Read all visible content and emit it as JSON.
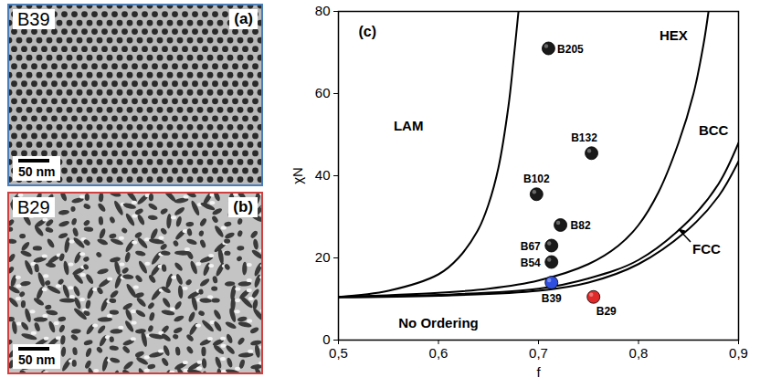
{
  "chart_data": {
    "type": "scatter",
    "panel_label": "(c)",
    "x_label": "f",
    "y_label": "χN",
    "xlim": [
      0.5,
      0.9
    ],
    "ylim": [
      0,
      80
    ],
    "xticks": [
      {
        "value": 0.5,
        "label": "0,5"
      },
      {
        "value": 0.6,
        "label": "0,6"
      },
      {
        "value": 0.7,
        "label": "0,7"
      },
      {
        "value": 0.8,
        "label": "0,8"
      },
      {
        "value": 0.9,
        "label": "0,9"
      }
    ],
    "yticks": [
      0,
      20,
      40,
      60,
      80
    ],
    "grid": false,
    "boundaries": [
      {
        "color": "#000000",
        "x": [
          0.5,
          0.55,
          0.6,
          0.62,
          0.64,
          0.65,
          0.66,
          0.67,
          0.675,
          0.68
        ],
        "y": [
          10.5,
          12,
          16,
          20,
          27,
          33,
          42,
          57,
          68,
          80
        ]
      },
      {
        "color": "#000000",
        "x": [
          0.5,
          0.6,
          0.65,
          0.7,
          0.75,
          0.78,
          0.8,
          0.82,
          0.84,
          0.855,
          0.865,
          0.87
        ],
        "y": [
          10.5,
          11.5,
          12.5,
          14.5,
          18.5,
          23,
          28,
          36,
          48,
          60,
          72,
          80
        ]
      },
      {
        "color": "#000000",
        "x": [
          0.5,
          0.6,
          0.7,
          0.75,
          0.8,
          0.85,
          0.88,
          0.9
        ],
        "y": [
          10.5,
          11,
          12.5,
          15,
          19.5,
          29,
          38,
          48
        ]
      },
      {
        "color": "#000000",
        "x": [
          0.5,
          0.6,
          0.7,
          0.75,
          0.8,
          0.85,
          0.88,
          0.9
        ],
        "y": [
          10.4,
          10.8,
          12,
          14,
          18.5,
          27,
          35,
          43.5
        ]
      }
    ],
    "points": {
      "labels": [
        "B205",
        "B132",
        "B102",
        "B82",
        "B67",
        "B54",
        "B39",
        "B29"
      ],
      "x": [
        0.71,
        0.753,
        0.698,
        0.722,
        0.713,
        0.713,
        0.713,
        0.755
      ],
      "y": [
        71,
        45.5,
        35.5,
        28,
        23,
        19,
        14,
        10.5
      ],
      "colors": [
        "#1a1a1a",
        "#1a1a1a",
        "#1a1a1a",
        "#1a1a1a",
        "#1a1a1a",
        "#1a1a1a",
        "#2f4fe0",
        "#e02a2a"
      ]
    },
    "annotations": [
      {
        "text": "LAM",
        "x": 0.57,
        "y": 52
      },
      {
        "text": "HEX",
        "x": 0.835,
        "y": 74
      },
      {
        "text": "BCC",
        "x": 0.875,
        "y": 51
      },
      {
        "text": "FCC",
        "x": 0.868,
        "y": 22
      },
      {
        "text": "No Ordering",
        "x": 0.6,
        "y": 4
      }
    ]
  },
  "images": [
    {
      "sample": "B39",
      "panel": "(a)",
      "scale_bar": "50 nm",
      "color": "#4a7ebb"
    },
    {
      "sample": "B29",
      "panel": "(b)",
      "scale_bar": "50 nm",
      "color": "#d04040"
    }
  ]
}
